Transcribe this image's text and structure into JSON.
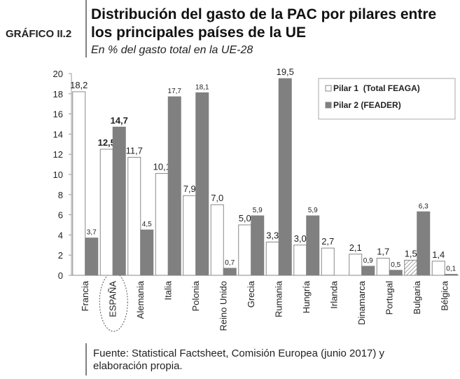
{
  "chart_data": {
    "type": "bar",
    "label": "GRÁFICO II.2",
    "title_lines": [
      "Distribución del gasto de la PAC por pilares entre",
      "los principales países de la UE"
    ],
    "subtitle": "En % del gasto total en la UE-28",
    "categories": [
      "Francia",
      "ESPAÑA",
      "Alemania",
      "Italia",
      "Polonia",
      "Reino Unido",
      "Grecia",
      "Rumania",
      "Hungría",
      "Irlanda",
      "Dinamarca",
      "Portugal",
      "Bulgaria",
      "Bélgica"
    ],
    "highlight_category": "ESPAÑA",
    "series": [
      {
        "name": "Pilar 1  (Total FEAGA)",
        "color": "#ffffff",
        "values": [
          18.2,
          12.5,
          11.7,
          10.1,
          7.9,
          7.0,
          5.0,
          3.3,
          3.0,
          2.7,
          2.1,
          1.7,
          1.5,
          1.4
        ],
        "value_labels": [
          "18,2",
          "12,5",
          "11,7",
          "10,1",
          "7,9",
          "7,0",
          "5,0",
          "3,3",
          "3,0",
          "2,7",
          "2,1",
          "1,7",
          "1,5",
          "1,4"
        ]
      },
      {
        "name": "Pilar 2 (FEADER)",
        "color": "#808080",
        "values": [
          3.7,
          14.7,
          4.5,
          17.7,
          18.1,
          0.7,
          5.9,
          19.5,
          5.9,
          null,
          0.9,
          0.5,
          6.3,
          0.1
        ],
        "value_labels": [
          "3,7",
          "14,7",
          "4,5",
          "17,7",
          "18,1",
          "0,7",
          "5,9",
          "19,5",
          "5,9",
          null,
          "0,9",
          "0,5",
          "6,3",
          "0,1"
        ]
      }
    ],
    "ylim": [
      0,
      20
    ],
    "yticks": [
      0,
      2,
      4,
      6,
      8,
      10,
      12,
      14,
      16,
      18,
      20
    ],
    "grid": false,
    "legend": "upper right",
    "source_lines": [
      "Fuente: Statistical Factsheet, Comisión Europea (junio 2017) y",
      "elaboración propia."
    ]
  }
}
